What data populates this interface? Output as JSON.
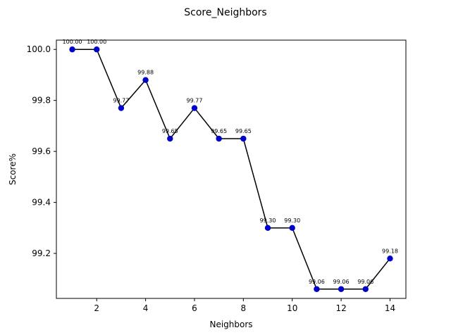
{
  "chart_data": {
    "type": "line",
    "title": "Score_Neighbors",
    "xlabel": "Neighbors",
    "ylabel": "Score%",
    "x": [
      1,
      2,
      3,
      4,
      5,
      6,
      7,
      8,
      9,
      10,
      11,
      12,
      13,
      14
    ],
    "series": [
      {
        "values": [
          100.0,
          100.0,
          99.77,
          99.88,
          99.65,
          99.77,
          99.65,
          99.65,
          99.3,
          99.3,
          99.06,
          99.06,
          99.06,
          99.18
        ],
        "line_color": "#000000",
        "marker_color": "#0000cc"
      }
    ],
    "data_labels": [
      "100.00",
      "100.00",
      "99.77",
      "99.88",
      "99.65",
      "99.77",
      "99.65",
      "99.65",
      "99.30",
      "99.30",
      "99.06",
      "99.06",
      "99.06",
      "99.18"
    ],
    "xlim": [
      0.35,
      14.65
    ],
    "ylim": [
      99.0235,
      100.0365
    ],
    "xticks": [
      2,
      4,
      6,
      8,
      10,
      12,
      14
    ],
    "xtick_labels": [
      "2",
      "4",
      "6",
      "8",
      "10",
      "12",
      "14"
    ],
    "yticks": [
      99.2,
      99.4,
      99.6,
      99.8,
      100.0
    ],
    "ytick_labels": [
      "99.2",
      "99.4",
      "99.6",
      "99.8",
      "100.0"
    ],
    "grid": false,
    "legend": "none"
  }
}
